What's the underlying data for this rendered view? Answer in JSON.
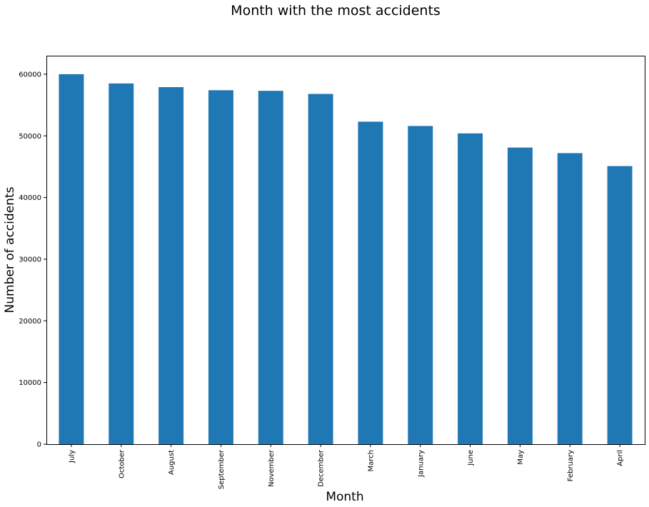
{
  "chart_data": {
    "type": "bar",
    "title": "Month with the most accidents",
    "xlabel": "Month",
    "ylabel": "Number of accidents",
    "categories": [
      "July",
      "October",
      "August",
      "September",
      "November",
      "December",
      "March",
      "January",
      "June",
      "May",
      "February",
      "April"
    ],
    "values": [
      60000,
      58500,
      57900,
      57400,
      57300,
      56800,
      52300,
      51600,
      50400,
      48100,
      47200,
      45100
    ],
    "ylim": [
      0,
      63000
    ],
    "yticks": [
      0,
      10000,
      20000,
      30000,
      40000,
      50000,
      60000
    ],
    "grid": false,
    "legend": "none",
    "bar_color": "#1f77b4"
  }
}
